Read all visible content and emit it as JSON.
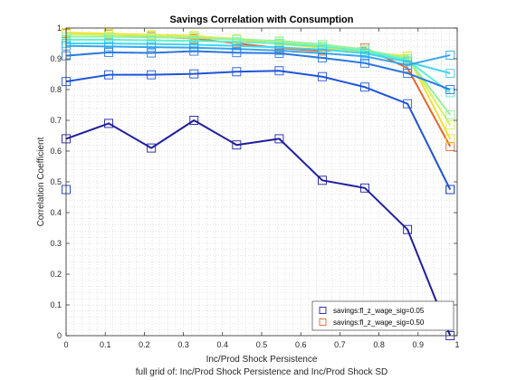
{
  "chart_data": {
    "type": "line",
    "title": "Savings Correlation with Consumption",
    "xlabel": "Inc/Prod Shock Persistence",
    "ylabel": "Correlation Coefficient",
    "caption": "full grid of: Inc/Prod Shock Persistence and Inc/Prod Shock SD",
    "xlim": [
      0,
      1
    ],
    "ylim": [
      0,
      1
    ],
    "x_ticks": [
      "0",
      "0.1",
      "0.2",
      "0.3",
      "0.4",
      "0.5",
      "0.6",
      "0.7",
      "0.8",
      "0.9",
      "1"
    ],
    "y_ticks": [
      "0",
      "0.1",
      "0.2",
      "0.3",
      "0.4",
      "0.5",
      "0.6",
      "0.7",
      "0.8",
      "0.9",
      "1"
    ],
    "grid": "minor-dotted",
    "legend_position": "bottom-right",
    "marker": "square",
    "x": [
      0.0,
      0.109,
      0.218,
      0.327,
      0.436,
      0.545,
      0.655,
      0.764,
      0.873,
      0.982
    ],
    "series": [
      {
        "name": "savings:fl_z_wage_sig=0.05",
        "color": "#1f1fa0",
        "values": [
          0.64,
          0.69,
          0.61,
          0.7,
          0.62,
          0.64,
          0.505,
          0.48,
          0.345,
          0.0
        ],
        "legend": true
      },
      {
        "color": "#1440c8",
        "values": [
          0.475,
          null,
          null,
          null,
          null,
          null,
          null,
          null,
          null,
          0.475
        ],
        "hidden_line": true
      },
      {
        "color": "#1e54d8",
        "values": [
          0.826,
          0.848,
          0.848,
          0.851,
          0.858,
          0.861,
          0.842,
          0.808,
          0.754,
          0.475
        ]
      },
      {
        "color": "#2a78e0",
        "values": [
          0.91,
          0.921,
          0.919,
          0.925,
          0.92,
          0.918,
          0.903,
          0.886,
          0.853,
          0.8
        ]
      },
      {
        "color": "#36a6ec",
        "values": [
          0.942,
          0.94,
          0.938,
          0.936,
          0.932,
          0.927,
          0.918,
          0.908,
          0.88,
          0.912
        ]
      },
      {
        "color": "#40d6f0",
        "values": [
          0.95,
          0.95,
          0.948,
          0.946,
          0.942,
          0.937,
          0.93,
          0.918,
          0.89,
          0.853
        ]
      },
      {
        "color": "#5cf2d0",
        "values": [
          0.962,
          0.962,
          0.96,
          0.958,
          0.955,
          0.95,
          0.94,
          0.925,
          0.895,
          0.79
        ]
      },
      {
        "color": "#96f29a",
        "values": [
          0.972,
          0.972,
          0.97,
          0.968,
          0.963,
          0.958,
          0.947,
          0.93,
          0.9,
          0.718
        ]
      },
      {
        "color": "#d6f25c",
        "values": [
          0.98,
          0.978,
          0.976,
          0.972,
          0.966,
          0.955,
          0.942,
          0.925,
          0.905,
          0.685
        ]
      },
      {
        "color": "#f2e030",
        "values": [
          0.985,
          0.982,
          0.978,
          0.975,
          0.963,
          0.948,
          0.936,
          0.92,
          0.91,
          0.64
        ]
      },
      {
        "name": "savings:fl_z_wage_sig=0.50",
        "color": "#e8642a",
        "values": [
          0.982,
          0.98,
          0.972,
          0.966,
          0.95,
          0.935,
          0.925,
          0.935,
          0.87,
          0.615
        ],
        "legend": true
      }
    ]
  }
}
